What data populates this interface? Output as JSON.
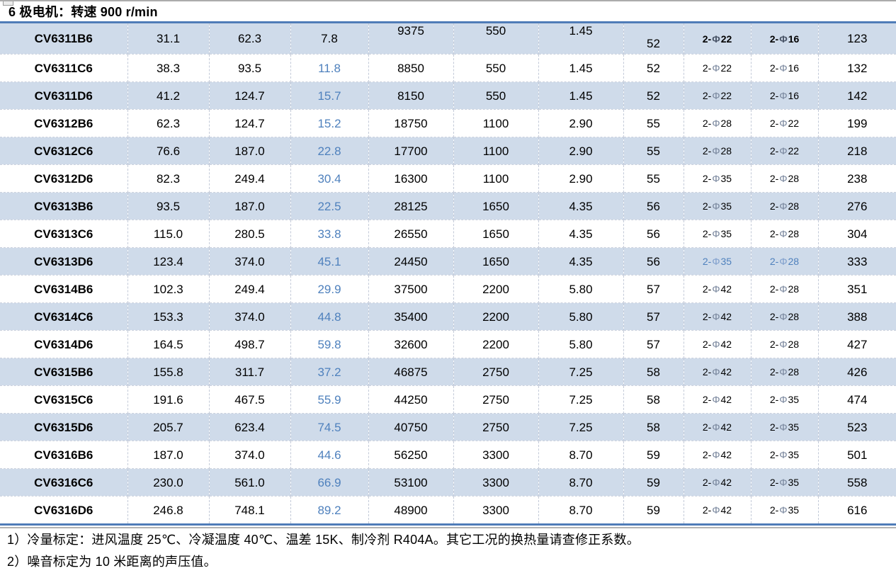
{
  "title": "6 极电机：转速 900 r/min",
  "colors": {
    "band_row": "#cfdbea",
    "accent_line": "#4f7cb8",
    "blue_value_text": "#4f81bd"
  },
  "chart_data": {
    "type": "table",
    "title": "6 极电机：转速 900 r/min",
    "rows": [
      [
        "CV6311B6",
        "31.1",
        "62.3",
        "7.8",
        "9375",
        "550",
        "1.45",
        "52",
        "2-Φ22",
        "2-Φ16",
        "123"
      ],
      [
        "CV6311C6",
        "38.3",
        "93.5",
        "11.8",
        "8850",
        "550",
        "1.45",
        "52",
        "2-Φ22",
        "2-Φ16",
        "132"
      ],
      [
        "CV6311D6",
        "41.2",
        "124.7",
        "15.7",
        "8150",
        "550",
        "1.45",
        "52",
        "2-Φ22",
        "2-Φ16",
        "142"
      ],
      [
        "CV6312B6",
        "62.3",
        "124.7",
        "15.2",
        "18750",
        "1100",
        "2.90",
        "55",
        "2-Φ28",
        "2-Φ22",
        "199"
      ],
      [
        "CV6312C6",
        "76.6",
        "187.0",
        "22.8",
        "17700",
        "1100",
        "2.90",
        "55",
        "2-Φ28",
        "2-Φ22",
        "218"
      ],
      [
        "CV6312D6",
        "82.3",
        "249.4",
        "30.4",
        "16300",
        "1100",
        "2.90",
        "55",
        "2-Φ35",
        "2-Φ28",
        "238"
      ],
      [
        "CV6313B6",
        "93.5",
        "187.0",
        "22.5",
        "28125",
        "1650",
        "4.35",
        "56",
        "2-Φ35",
        "2-Φ28",
        "276"
      ],
      [
        "CV6313C6",
        "115.0",
        "280.5",
        "33.8",
        "26550",
        "1650",
        "4.35",
        "56",
        "2-Φ35",
        "2-Φ28",
        "304"
      ],
      [
        "CV6313D6",
        "123.4",
        "374.0",
        "45.1",
        "24450",
        "1650",
        "4.35",
        "56",
        "2-Φ35",
        "2-Φ28",
        "333"
      ],
      [
        "CV6314B6",
        "102.3",
        "249.4",
        "29.9",
        "37500",
        "2200",
        "5.80",
        "57",
        "2-Φ42",
        "2-Φ28",
        "351"
      ],
      [
        "CV6314C6",
        "153.3",
        "374.0",
        "44.8",
        "35400",
        "2200",
        "5.80",
        "57",
        "2-Φ42",
        "2-Φ28",
        "388"
      ],
      [
        "CV6314D6",
        "164.5",
        "498.7",
        "59.8",
        "32600",
        "2200",
        "5.80",
        "57",
        "2-Φ42",
        "2-Φ28",
        "427"
      ],
      [
        "CV6315B6",
        "155.8",
        "311.7",
        "37.2",
        "46875",
        "2750",
        "7.25",
        "58",
        "2-Φ42",
        "2-Φ28",
        "426"
      ],
      [
        "CV6315C6",
        "191.6",
        "467.5",
        "55.9",
        "44250",
        "2750",
        "7.25",
        "58",
        "2-Φ42",
        "2-Φ35",
        "474"
      ],
      [
        "CV6315D6",
        "205.7",
        "623.4",
        "74.5",
        "40750",
        "2750",
        "7.25",
        "58",
        "2-Φ42",
        "2-Φ35",
        "523"
      ],
      [
        "CV6316B6",
        "187.0",
        "374.0",
        "44.6",
        "56250",
        "3300",
        "8.70",
        "59",
        "2-Φ42",
        "2-Φ35",
        "501"
      ],
      [
        "CV6316C6",
        "230.0",
        "561.0",
        "66.9",
        "53100",
        "3300",
        "8.70",
        "59",
        "2-Φ42",
        "2-Φ35",
        "558"
      ],
      [
        "CV6316D6",
        "246.8",
        "748.1",
        "89.2",
        "48900",
        "3300",
        "8.70",
        "59",
        "2-Φ42",
        "2-Φ35",
        "616"
      ]
    ]
  },
  "notes": [
    "1）冷量标定：进风温度 25℃、冷凝温度 40℃、温差 15K、制冷剂 R404A。其它工况的换热量请查修正系数。",
    "2）噪音标定为 10 米距离的声压值。"
  ]
}
